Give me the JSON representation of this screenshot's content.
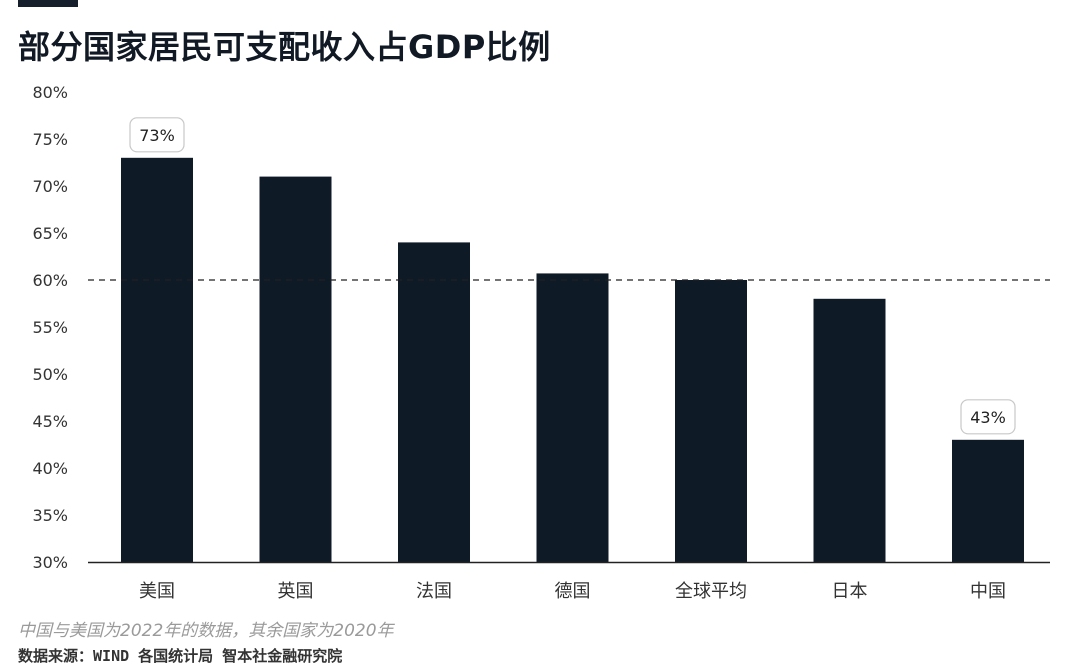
{
  "title": "部分国家居民可支配收入占GDP比例",
  "note": "中国与美国为2022年的数据，其余国家为2020年",
  "source_label": "数据来源：",
  "source_text": "WIND 各国统计局 智本社金融研究院",
  "colors": {
    "bar": "#0f1a27",
    "text": "#16202c",
    "axis": "#222222",
    "reference_line": "#222222",
    "callout_border": "#c8c8c8"
  },
  "chart_data": {
    "type": "bar",
    "title": "部分国家居民可支配收入占GDP比例",
    "xlabel": "",
    "ylabel": "",
    "categories": [
      "美国",
      "英国",
      "法国",
      "德国",
      "全球平均",
      "日本",
      "中国"
    ],
    "values": [
      73,
      71,
      64,
      60.7,
      60,
      58,
      43
    ],
    "unit": "%",
    "ylim": [
      30,
      80
    ],
    "yticks": [
      30,
      35,
      40,
      45,
      50,
      55,
      60,
      65,
      70,
      75,
      80
    ],
    "ytick_labels": [
      "30%",
      "35%",
      "40%",
      "45%",
      "50%",
      "55%",
      "60%",
      "65%",
      "70%",
      "75%",
      "80%"
    ],
    "reference_line": {
      "value": 60,
      "style": "dashed"
    },
    "data_labels": [
      {
        "category": "美国",
        "text": "73%"
      },
      {
        "category": "中国",
        "text": "43%"
      }
    ],
    "grid": false,
    "legend": "none"
  }
}
